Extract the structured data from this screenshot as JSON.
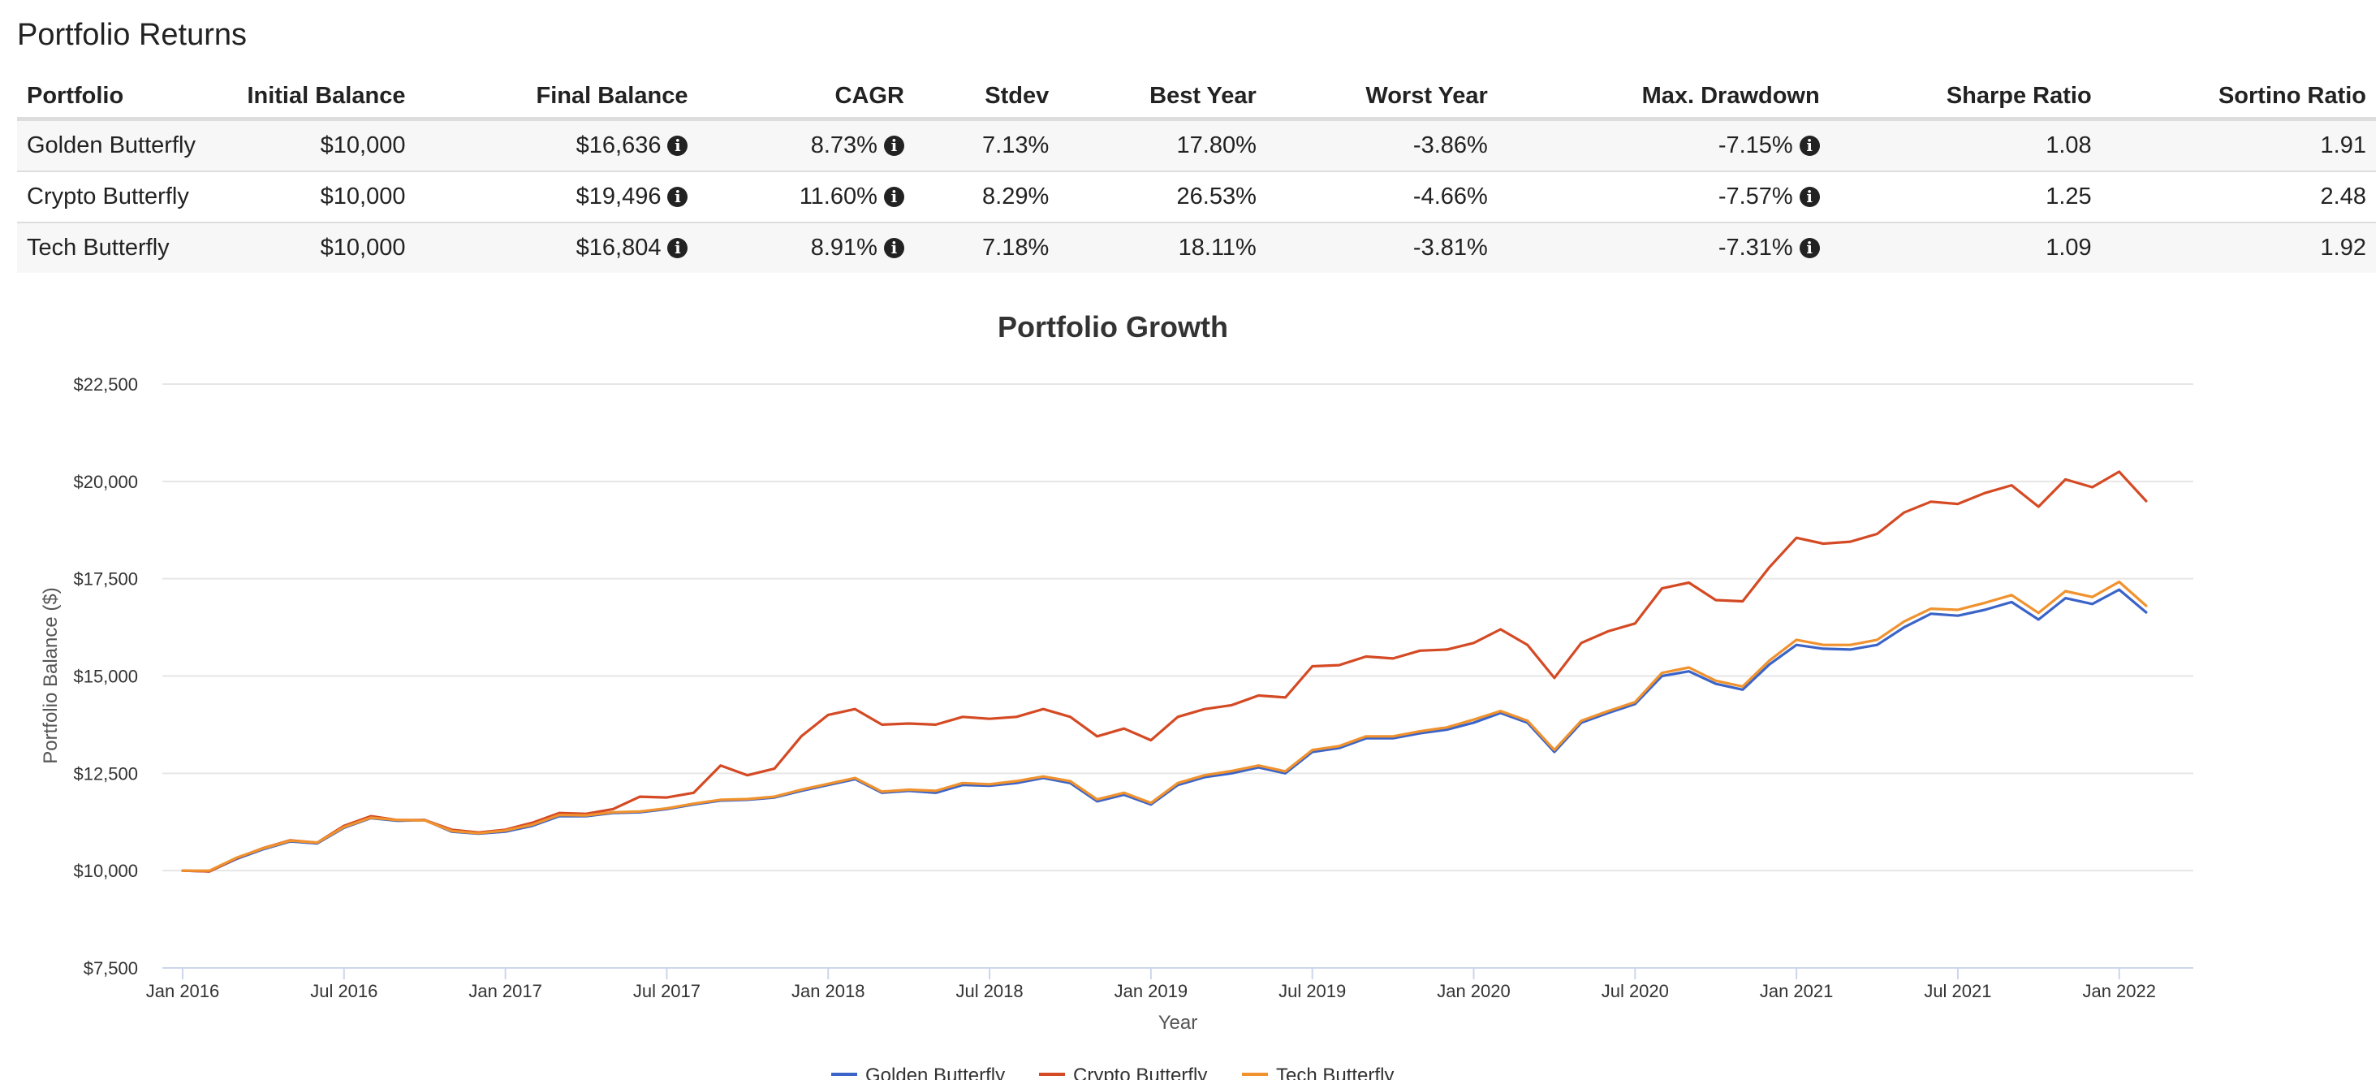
{
  "page_title": "Portfolio Returns",
  "table": {
    "headers": [
      "Portfolio",
      "Initial Balance",
      "Final Balance",
      "CAGR",
      "Stdev",
      "Best Year",
      "Worst Year",
      "Max. Drawdown",
      "Sharpe Ratio",
      "Sortino Ratio"
    ],
    "rows": [
      {
        "portfolio": "Golden Butterfly",
        "initial": "$10,000",
        "final": "$16,636",
        "cagr": "8.73%",
        "stdev": "7.13%",
        "best": "17.80%",
        "worst": "-3.86%",
        "maxdd": "-7.15%",
        "sharpe": "1.08",
        "sortino": "1.91"
      },
      {
        "portfolio": "Crypto Butterfly",
        "initial": "$10,000",
        "final": "$19,496",
        "cagr": "11.60%",
        "stdev": "8.29%",
        "best": "26.53%",
        "worst": "-4.66%",
        "maxdd": "-7.57%",
        "sharpe": "1.25",
        "sortino": "2.48"
      },
      {
        "portfolio": "Tech Butterfly",
        "initial": "$10,000",
        "final": "$16,804",
        "cagr": "8.91%",
        "stdev": "7.18%",
        "best": "18.11%",
        "worst": "-3.81%",
        "maxdd": "-7.31%",
        "sharpe": "1.09",
        "sortino": "1.92"
      }
    ],
    "info_icon": "info-circle-icon"
  },
  "chart_data": {
    "type": "line",
    "title": "Portfolio Growth",
    "xlabel": "Year",
    "ylabel": "Portfolio Balance ($)",
    "ylim": [
      7500,
      22500
    ],
    "y_ticks": [
      7500,
      10000,
      12500,
      15000,
      17500,
      20000,
      22500
    ],
    "y_tick_labels": [
      "$7,500",
      "$10,000",
      "$12,500",
      "$15,000",
      "$17,500",
      "$20,000",
      "$22,500"
    ],
    "x_range": [
      "2016-01",
      "2022-03"
    ],
    "x_ticks": [
      "2016-01",
      "2016-07",
      "2017-01",
      "2017-07",
      "2018-01",
      "2018-07",
      "2019-01",
      "2019-07",
      "2020-01",
      "2020-07",
      "2021-01",
      "2021-07",
      "2022-01"
    ],
    "x_tick_labels": [
      "Jan 2016",
      "Jul 2016",
      "Jan 2017",
      "Jul 2017",
      "Jan 2018",
      "Jul 2018",
      "Jan 2019",
      "Jul 2019",
      "Jan 2020",
      "Jul 2020",
      "Jan 2021",
      "Jul 2021",
      "Jan 2022"
    ],
    "x": [
      "2016-01",
      "2016-02",
      "2016-03",
      "2016-04",
      "2016-05",
      "2016-06",
      "2016-07",
      "2016-08",
      "2016-09",
      "2016-10",
      "2016-11",
      "2016-12",
      "2017-01",
      "2017-02",
      "2017-03",
      "2017-04",
      "2017-05",
      "2017-06",
      "2017-07",
      "2017-08",
      "2017-09",
      "2017-10",
      "2017-11",
      "2017-12",
      "2018-01",
      "2018-02",
      "2018-03",
      "2018-04",
      "2018-05",
      "2018-06",
      "2018-07",
      "2018-08",
      "2018-09",
      "2018-10",
      "2018-11",
      "2018-12",
      "2019-01",
      "2019-02",
      "2019-03",
      "2019-04",
      "2019-05",
      "2019-06",
      "2019-07",
      "2019-08",
      "2019-09",
      "2019-10",
      "2019-11",
      "2019-12",
      "2020-01",
      "2020-02",
      "2020-03",
      "2020-04",
      "2020-05",
      "2020-06",
      "2020-07",
      "2020-08",
      "2020-09",
      "2020-10",
      "2020-11",
      "2020-12",
      "2021-01",
      "2021-02",
      "2021-03",
      "2021-04",
      "2021-05",
      "2021-06",
      "2021-07",
      "2021-08",
      "2021-09",
      "2021-10",
      "2021-11",
      "2021-12",
      "2022-01",
      "2022-02"
    ],
    "series": [
      {
        "name": "Golden Butterfly",
        "color": "#3b64c8",
        "values": [
          10000,
          9980,
          10300,
          10550,
          10750,
          10700,
          11100,
          11350,
          11280,
          11300,
          11000,
          10950,
          11000,
          11150,
          11400,
          11400,
          11480,
          11500,
          11580,
          11700,
          11800,
          11820,
          11880,
          12050,
          12200,
          12350,
          12000,
          12050,
          12000,
          12200,
          12180,
          12250,
          12380,
          12250,
          11780,
          11950,
          11700,
          12200,
          12400,
          12500,
          12650,
          12500,
          13050,
          13150,
          13400,
          13400,
          13530,
          13620,
          13800,
          14050,
          13800,
          13050,
          13800,
          14050,
          14280,
          15000,
          15120,
          14800,
          14650,
          15300,
          15800,
          15700,
          15680,
          15800,
          16250,
          16600,
          16550,
          16700,
          16900,
          16450,
          17000,
          16850,
          17220,
          16636
        ]
      },
      {
        "name": "Crypto Butterfly",
        "color": "#d44a24",
        "values": [
          10000,
          9980,
          10320,
          10580,
          10780,
          10720,
          11150,
          11400,
          11300,
          11300,
          11050,
          10980,
          11050,
          11230,
          11480,
          11460,
          11580,
          11900,
          11880,
          12000,
          12700,
          12450,
          12620,
          13450,
          14000,
          14150,
          13750,
          13780,
          13750,
          13950,
          13900,
          13950,
          14150,
          13950,
          13450,
          13650,
          13350,
          13950,
          14150,
          14250,
          14500,
          14450,
          15250,
          15280,
          15500,
          15450,
          15650,
          15680,
          15850,
          16200,
          15800,
          14950,
          15850,
          16150,
          16350,
          17250,
          17400,
          16950,
          16920,
          17800,
          18550,
          18400,
          18450,
          18650,
          19200,
          19480,
          19420,
          19700,
          19900,
          19350,
          20050,
          19850,
          20250,
          19496
        ]
      },
      {
        "name": "Tech Butterfly",
        "color": "#f0922e",
        "values": [
          10000,
          10000,
          10330,
          10570,
          10770,
          10720,
          11120,
          11360,
          11300,
          11290,
          11020,
          10960,
          11030,
          11180,
          11430,
          11420,
          11500,
          11520,
          11600,
          11720,
          11820,
          11840,
          11900,
          12080,
          12230,
          12380,
          12030,
          12080,
          12050,
          12250,
          12220,
          12300,
          12420,
          12300,
          11830,
          12000,
          11740,
          12250,
          12450,
          12560,
          12700,
          12550,
          13100,
          13200,
          13450,
          13450,
          13580,
          13680,
          13880,
          14100,
          13850,
          13100,
          13850,
          14100,
          14330,
          15080,
          15220,
          14880,
          14730,
          15400,
          15930,
          15800,
          15800,
          15930,
          16400,
          16730,
          16700,
          16880,
          17080,
          16620,
          17180,
          17030,
          17420,
          16804
        ]
      }
    ],
    "legend": "bottom-center",
    "grid": true
  }
}
